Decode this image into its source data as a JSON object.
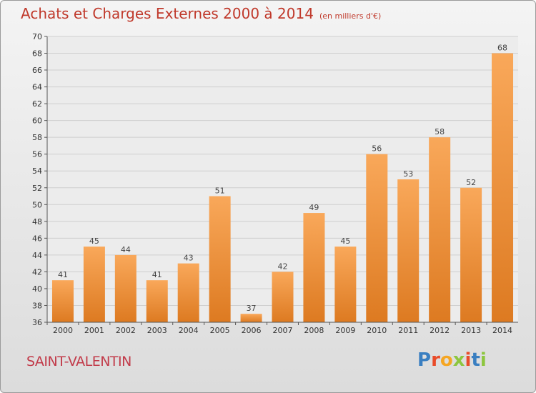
{
  "title": "Achats et Charges Externes 2000 à 2014",
  "unit_note": "(en milliers d'€)",
  "location": "SAINT-VALENTIN",
  "brand": {
    "text": "Proxiti",
    "letter_colors": [
      "#3a7fc1",
      "#e94c2a",
      "#f5a623",
      "#8dc63f",
      "#e94c2a",
      "#3a7fc1",
      "#8dc63f"
    ]
  },
  "colors": {
    "bar_light": "#f9a85a",
    "bar_dark": "#dd7a21",
    "title": "#c0392b",
    "grid": "#cfcfcf"
  },
  "chart_data": {
    "type": "bar",
    "categories": [
      "2000",
      "2001",
      "2002",
      "2003",
      "2004",
      "2005",
      "2006",
      "2007",
      "2008",
      "2009",
      "2010",
      "2011",
      "2012",
      "2013",
      "2014"
    ],
    "values": [
      41,
      45,
      44,
      41,
      43,
      51,
      37,
      42,
      49,
      45,
      56,
      53,
      58,
      52,
      68
    ],
    "ylim": [
      36,
      70
    ],
    "yticks": [
      36,
      38,
      40,
      42,
      44,
      46,
      48,
      50,
      52,
      54,
      56,
      58,
      60,
      62,
      64,
      66,
      68,
      70
    ],
    "grid": true,
    "data_labels": true
  }
}
